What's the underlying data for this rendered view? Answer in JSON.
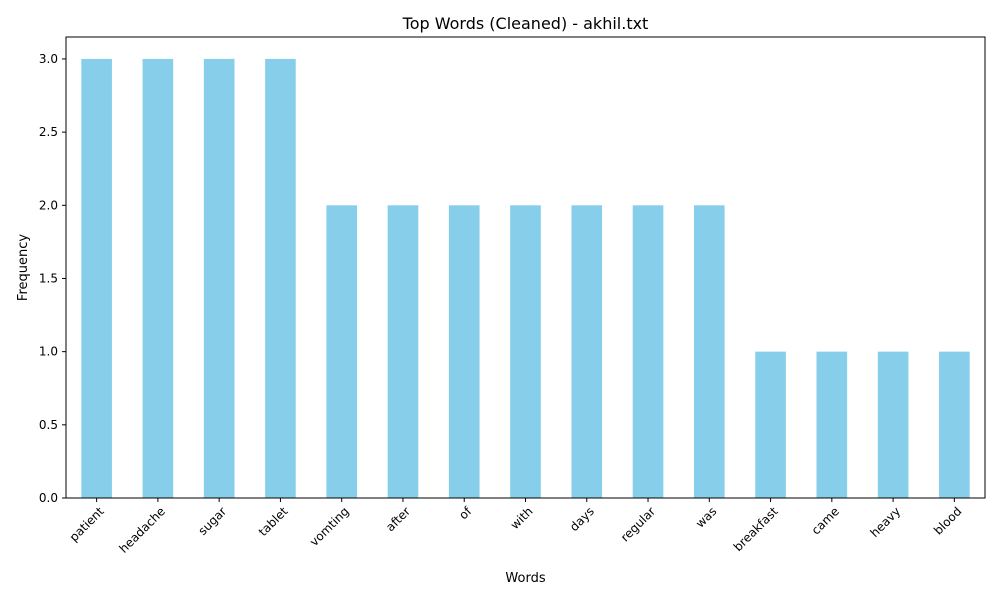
{
  "chart_data": {
    "type": "bar",
    "title": "Top Words (Cleaned) - akhil.txt",
    "xlabel": "Words",
    "ylabel": "Frequency",
    "categories": [
      "patient",
      "headache",
      "sugar",
      "tablet",
      "vomting",
      "after",
      "of",
      "with",
      "days",
      "regular",
      "was",
      "breakfast",
      "came",
      "heavy",
      "blood"
    ],
    "values": [
      3,
      3,
      3,
      3,
      2,
      2,
      2,
      2,
      2,
      2,
      2,
      1,
      1,
      1,
      1
    ],
    "ylim": [
      0,
      3.15
    ],
    "yticks": [
      "0.0",
      "0.5",
      "1.0",
      "1.5",
      "2.0",
      "2.5",
      "3.0"
    ],
    "bar_color": "#87ceeb",
    "grid": false,
    "legend": "none"
  }
}
